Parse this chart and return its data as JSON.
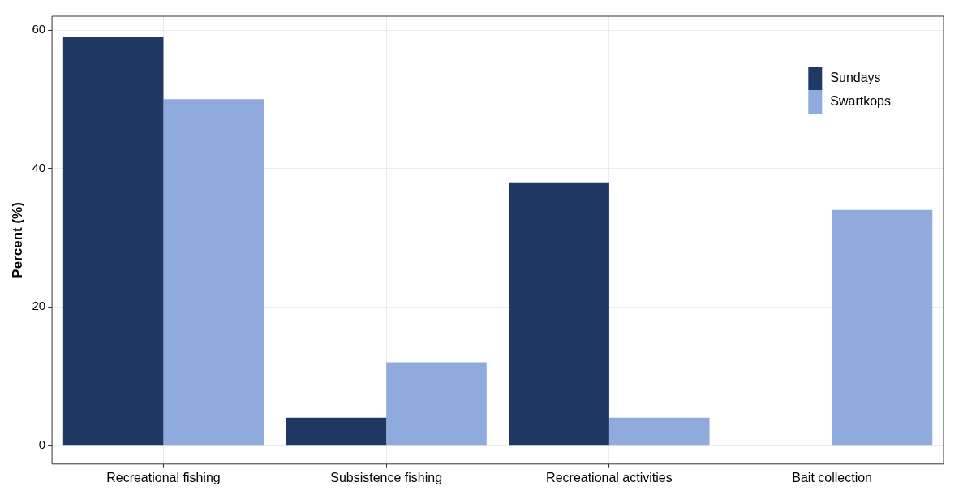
{
  "chart_data": {
    "type": "bar",
    "ylabel": "Percent (%)",
    "categories": [
      "Recreational fishing",
      "Subsistence fishing",
      "Recreational activities",
      "Bait collection"
    ],
    "series": [
      {
        "name": "Sundays",
        "color": "#203864",
        "values": [
          59,
          4,
          38,
          0
        ]
      },
      {
        "name": "Swartkops",
        "color": "#8faadc",
        "values": [
          50,
          12,
          4,
          34
        ]
      }
    ],
    "ylim": [
      -2.7,
      62
    ],
    "yticks": [
      0,
      20,
      40,
      60
    ],
    "grid": true,
    "legend": "top right"
  }
}
